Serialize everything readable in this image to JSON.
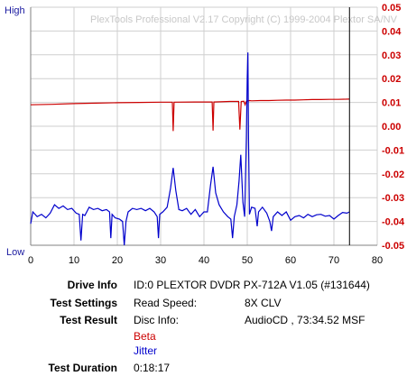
{
  "chart_data": {
    "type": "line",
    "watermark": "PlexTools Professional V2.17 Copyright (C) 1999-2004 Plextor SA/NV",
    "left_axis": {
      "top_label": "High",
      "bottom_label": "Low"
    },
    "xlim": [
      0,
      80
    ],
    "x_ticks": [
      "0",
      "10",
      "20",
      "30",
      "40",
      "50",
      "60",
      "70",
      "80"
    ],
    "right_axis": {
      "ylim": [
        -0.05,
        0.05
      ],
      "ticks": [
        "0.05",
        "0.04",
        "0.03",
        "0.02",
        "0.01",
        "0.00",
        "-0.01",
        "-0.02",
        "-0.03",
        "-0.04",
        "-0.05"
      ]
    },
    "end_marker_x": 73.6,
    "grid": true,
    "series": [
      {
        "name": "Beta",
        "color": "#cc0000",
        "points": [
          [
            0,
            0.009
          ],
          [
            5,
            0.0092
          ],
          [
            10,
            0.0095
          ],
          [
            15,
            0.0097
          ],
          [
            20,
            0.0099
          ],
          [
            25,
            0.01
          ],
          [
            30,
            0.0101
          ],
          [
            32.7,
            0.0101
          ],
          [
            32.9,
            -0.002
          ],
          [
            33.1,
            0.0101
          ],
          [
            38,
            0.0102
          ],
          [
            41.9,
            0.0102
          ],
          [
            42.1,
            -0.0018
          ],
          [
            42.3,
            0.0102
          ],
          [
            46,
            0.0104
          ],
          [
            48,
            0.0104
          ],
          [
            48.3,
            -0.0014
          ],
          [
            48.6,
            0.0104
          ],
          [
            49.2,
            0.0105
          ],
          [
            49.5,
            0.009
          ],
          [
            49.8,
            0.0105
          ],
          [
            50.5,
            0.0108
          ],
          [
            51,
            0.0107
          ],
          [
            53,
            0.0108
          ],
          [
            55,
            0.0108
          ],
          [
            57,
            0.0109
          ],
          [
            59,
            0.011
          ],
          [
            61,
            0.011
          ],
          [
            63,
            0.0111
          ],
          [
            65,
            0.0112
          ],
          [
            67,
            0.0112
          ],
          [
            69,
            0.0113
          ],
          [
            71,
            0.0113
          ],
          [
            73.6,
            0.0114
          ]
        ]
      },
      {
        "name": "Jitter",
        "color": "#0000cc",
        "points": [
          [
            0,
            -0.041
          ],
          [
            0.5,
            -0.036
          ],
          [
            1.5,
            -0.038
          ],
          [
            2.5,
            -0.037
          ],
          [
            3.5,
            -0.0385
          ],
          [
            4.5,
            -0.0365
          ],
          [
            5.5,
            -0.033
          ],
          [
            6.5,
            -0.0345
          ],
          [
            7.5,
            -0.0335
          ],
          [
            8.5,
            -0.035
          ],
          [
            9.5,
            -0.0345
          ],
          [
            10.5,
            -0.0365
          ],
          [
            11.2,
            -0.037
          ],
          [
            11.6,
            -0.048
          ],
          [
            12,
            -0.037
          ],
          [
            12.5,
            -0.0375
          ],
          [
            13.5,
            -0.034
          ],
          [
            14.5,
            -0.035
          ],
          [
            15.5,
            -0.0345
          ],
          [
            16.5,
            -0.0355
          ],
          [
            17.5,
            -0.035
          ],
          [
            18.2,
            -0.036
          ],
          [
            18.5,
            -0.047
          ],
          [
            18.8,
            -0.037
          ],
          [
            19.5,
            -0.0385
          ],
          [
            20.5,
            -0.039
          ],
          [
            21.2,
            -0.04
          ],
          [
            21.6,
            -0.05
          ],
          [
            22,
            -0.04
          ],
          [
            22.5,
            -0.036
          ],
          [
            23.5,
            -0.0345
          ],
          [
            24.5,
            -0.035
          ],
          [
            25.5,
            -0.0345
          ],
          [
            26.5,
            -0.0355
          ],
          [
            27.5,
            -0.0345
          ],
          [
            28.5,
            -0.036
          ],
          [
            29.2,
            -0.038
          ],
          [
            29.5,
            -0.047
          ],
          [
            29.8,
            -0.037
          ],
          [
            30.5,
            -0.036
          ],
          [
            31.5,
            -0.034
          ],
          [
            32.3,
            -0.026
          ],
          [
            32.9,
            -0.0175
          ],
          [
            33.5,
            -0.027
          ],
          [
            34.2,
            -0.035
          ],
          [
            35,
            -0.0355
          ],
          [
            36,
            -0.0345
          ],
          [
            37,
            -0.037
          ],
          [
            38,
            -0.035
          ],
          [
            39,
            -0.038
          ],
          [
            40,
            -0.036
          ],
          [
            40.8,
            -0.036
          ],
          [
            41.5,
            -0.025
          ],
          [
            42.1,
            -0.017
          ],
          [
            42.7,
            -0.028
          ],
          [
            43.5,
            -0.033
          ],
          [
            44.5,
            -0.036
          ],
          [
            45.5,
            -0.038
          ],
          [
            46.2,
            -0.039
          ],
          [
            46.6,
            -0.047
          ],
          [
            47,
            -0.038
          ],
          [
            47.6,
            -0.033
          ],
          [
            48.1,
            -0.023
          ],
          [
            48.5,
            -0.012
          ],
          [
            49,
            -0.032
          ],
          [
            49.4,
            -0.038
          ],
          [
            49.8,
            -0.005
          ],
          [
            50,
            0.021
          ],
          [
            50.15,
            0.031
          ],
          [
            50.3,
            -0.005
          ],
          [
            50.5,
            -0.037
          ],
          [
            51,
            -0.034
          ],
          [
            51.8,
            -0.0345
          ],
          [
            52.3,
            -0.042
          ],
          [
            52.6,
            -0.036
          ],
          [
            53.5,
            -0.034
          ],
          [
            54.5,
            -0.0365
          ],
          [
            55.2,
            -0.04
          ],
          [
            55.6,
            -0.044
          ],
          [
            56,
            -0.038
          ],
          [
            57,
            -0.036
          ],
          [
            58,
            -0.0375
          ],
          [
            59,
            -0.036
          ],
          [
            60,
            -0.0395
          ],
          [
            61,
            -0.038
          ],
          [
            62,
            -0.0375
          ],
          [
            63,
            -0.0385
          ],
          [
            64,
            -0.037
          ],
          [
            65,
            -0.038
          ],
          [
            66,
            -0.0372
          ],
          [
            67,
            -0.037
          ],
          [
            68,
            -0.0378
          ],
          [
            69,
            -0.0375
          ],
          [
            70,
            -0.039
          ],
          [
            71,
            -0.0375
          ],
          [
            72,
            -0.0362
          ],
          [
            73,
            -0.0365
          ],
          [
            73.6,
            -0.036
          ]
        ]
      }
    ]
  },
  "info": {
    "drive_label": "Drive Info",
    "drive_value": "ID:0 PLEXTOR DVDR PX-712A V1.05 (#131644)",
    "settings_label": "Test Settings",
    "settings_key": "Read Speed:",
    "settings_value": "8X CLV",
    "result_label": "Test Result",
    "result_key": "Disc Info:",
    "result_value": "AudioCD , 73:34.52 MSF",
    "legend_beta": "Beta",
    "legend_jitter": "Jitter",
    "duration_label": "Test Duration",
    "duration_value": "0:18:17"
  }
}
